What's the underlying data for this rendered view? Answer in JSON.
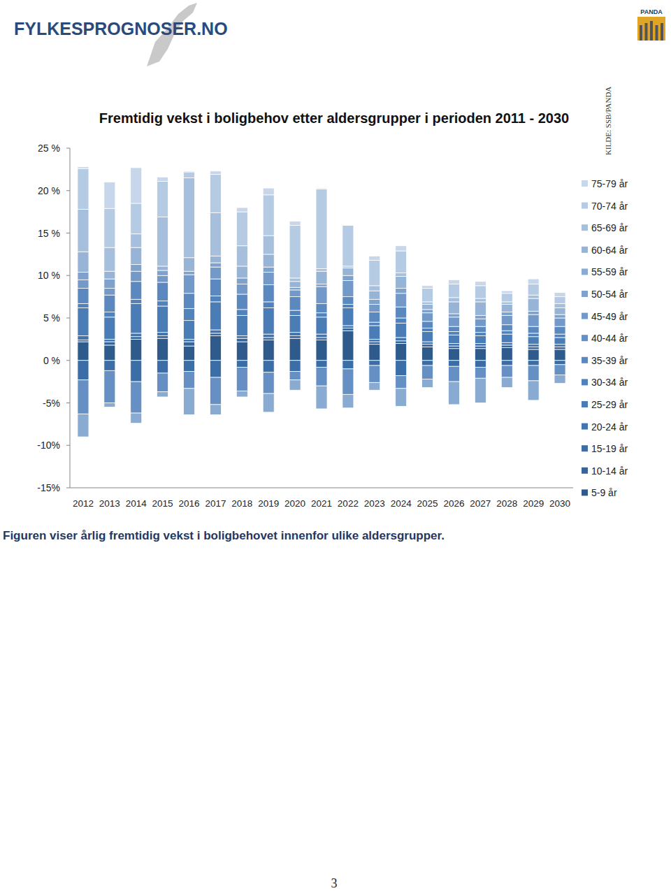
{
  "header": {
    "logo": "FYLKESPROGNOSER.NO",
    "badge": "PANDA"
  },
  "source": "KILDE: SSB/PANDA",
  "caption": "Figuren viser årlig fremtidig vekst i boligbehovet innenfor ulike aldersgrupper.",
  "page_number": "3",
  "chart_data": {
    "type": "bar",
    "title": "Fremtidig vekst  i boligbehov etter aldersgrupper i perioden 2011 - 2030",
    "stacked": true,
    "grid": false,
    "legend": "right",
    "categories": [
      "2012",
      "2013",
      "2014",
      "2015",
      "2016",
      "2017",
      "2018",
      "2019",
      "2020",
      "2021",
      "2022",
      "2023",
      "2024",
      "2025",
      "2026",
      "2027",
      "2028",
      "2029",
      "2030"
    ],
    "ylim": [
      -15,
      25
    ],
    "yticks": [
      {
        "value": -15,
        "label": "-15%"
      },
      {
        "value": -10,
        "label": "-10%"
      },
      {
        "value": -5,
        "label": "-5%"
      },
      {
        "value": 0,
        "label": "0 %"
      },
      {
        "value": 5,
        "label": "5 %"
      },
      {
        "value": 10,
        "label": "10 %"
      },
      {
        "value": 15,
        "label": "15 %"
      },
      {
        "value": 20,
        "label": "20 %"
      },
      {
        "value": 25,
        "label": "25 %"
      }
    ],
    "series": [
      {
        "name": "5-9 år",
        "color": "#2f5b8c",
        "values": [
          2.2,
          1.8,
          2.5,
          2.6,
          1.7,
          2.9,
          2.2,
          2.4,
          2.6,
          2.4,
          3.5,
          1.9,
          2.0,
          1.6,
          1.4,
          1.4,
          1.5,
          1.3,
          1.3
        ]
      },
      {
        "name": "10-14 år",
        "color": "#35659a",
        "values": [
          0.2,
          0.4,
          0.3,
          0.3,
          0.5,
          0.3,
          0.4,
          0.3,
          0.3,
          0.3,
          0.3,
          0.3,
          0.3,
          0.3,
          0.3,
          0.3,
          0.3,
          0.3,
          0.3
        ]
      },
      {
        "name": "15-19 år",
        "color": "#3b6ea6",
        "values": [
          -2.3,
          -1.2,
          -2.5,
          -1.5,
          -1.3,
          -2.0,
          -0.8,
          -1.4,
          -1.3,
          -0.8,
          -1.0,
          -0.6,
          -1.8,
          -0.6,
          -0.7,
          -0.8,
          -0.6,
          -0.6,
          -0.5
        ]
      },
      {
        "name": "20-24 år",
        "color": "#4275b0",
        "values": [
          0.5,
          0.3,
          0.4,
          0.4,
          0.3,
          0.4,
          0.3,
          0.4,
          0.4,
          0.4,
          0.3,
          0.3,
          0.4,
          0.3,
          0.3,
          0.3,
          0.3,
          0.3,
          0.3
        ]
      },
      {
        "name": "25-29 år",
        "color": "#4a7cb6",
        "values": [
          3.3,
          2.6,
          3.5,
          3.1,
          2.2,
          3.3,
          2.4,
          3.1,
          2.0,
          2.0,
          2.1,
          1.6,
          1.7,
          1.2,
          1.0,
          0.9,
          1.0,
          0.9,
          0.8
        ]
      },
      {
        "name": "30-34 år",
        "color": "#5282bb",
        "values": [
          0.5,
          0.6,
          0.5,
          0.6,
          1.4,
          0.7,
          0.7,
          0.7,
          0.6,
          0.5,
          0.4,
          0.4,
          0.6,
          0.4,
          0.4,
          0.4,
          0.4,
          0.4,
          0.4
        ]
      },
      {
        "name": "35-39 år",
        "color": "#5b89bf",
        "values": [
          1.8,
          2.0,
          2.1,
          2.2,
          1.8,
          2.0,
          1.8,
          2.0,
          1.6,
          1.1,
          0.9,
          1.2,
          1.3,
          0.8,
          0.6,
          0.7,
          0.7,
          0.8,
          0.9
        ]
      },
      {
        "name": "40-44 år",
        "color": "#6690c3",
        "values": [
          -4.0,
          -3.8,
          -3.7,
          -2.2,
          -2.0,
          -3.2,
          -2.8,
          -2.5,
          -1.0,
          -2.2,
          -3.0,
          -2.0,
          -1.5,
          -1.6,
          -1.8,
          -1.3,
          -1.4,
          -1.8,
          -1.2
        ]
      },
      {
        "name": "45-49 år",
        "color": "#7299c8",
        "values": [
          1.0,
          0.8,
          1.2,
          0.8,
          2.2,
          1.4,
          1.2,
          1.5,
          0.8,
          2.0,
          1.9,
          0.9,
          1.6,
          1.0,
          1.1,
          0.9,
          1.1,
          1.4,
          1.0
        ]
      },
      {
        "name": "50-54 år",
        "color": "#7ea2cc",
        "values": [
          0.9,
          1.1,
          0.8,
          0.6,
          0.4,
          0.5,
          0.7,
          0.6,
          0.3,
          0.3,
          0.6,
          0.6,
          0.6,
          0.4,
          0.4,
          0.4,
          0.4,
          0.4,
          0.4
        ]
      },
      {
        "name": "55-59 år",
        "color": "#8aabd1",
        "values": [
          -2.7,
          -0.5,
          -1.2,
          -0.6,
          -3.1,
          -1.2,
          -0.7,
          -2.2,
          -1.2,
          -2.7,
          -1.6,
          -0.9,
          -2.1,
          -1.0,
          -2.7,
          -2.9,
          -1.2,
          -2.3,
          -1.0
        ]
      },
      {
        "name": "60-64 år",
        "color": "#97b4d6",
        "values": [
          2.4,
          0.9,
          2.0,
          0.5,
          1.6,
          0.8,
          1.4,
          1.5,
          0.7,
          1.5,
          0.9,
          1.0,
          1.4,
          0.6,
          1.4,
          1.6,
          0.9,
          1.5,
          0.8
        ]
      },
      {
        "name": "65-69 år",
        "color": "#a5bfdc",
        "values": [
          5.0,
          2.8,
          1.6,
          5.8,
          9.4,
          5.1,
          2.4,
          2.2,
          0.4,
          0.3,
          0.2,
          0.6,
          0.4,
          0.3,
          0.5,
          0.4,
          0.3,
          0.4,
          0.5
        ]
      },
      {
        "name": "70-74 år",
        "color": "#b5cae3",
        "values": [
          4.8,
          4.6,
          3.6,
          4.2,
          0.7,
          4.5,
          4.0,
          4.8,
          6.2,
          9.4,
          4.8,
          3.0,
          2.6,
          1.6,
          1.6,
          1.5,
          1.0,
          1.3,
          0.8
        ]
      },
      {
        "name": "75-79 år",
        "color": "#c7d6ea",
        "values": [
          0.2,
          3.1,
          4.2,
          0.5,
          0.1,
          0.4,
          0.5,
          0.8,
          0.5,
          0.1,
          0.0,
          0.5,
          0.6,
          0.3,
          0.5,
          0.5,
          0.3,
          0.6,
          0.5
        ]
      }
    ]
  }
}
